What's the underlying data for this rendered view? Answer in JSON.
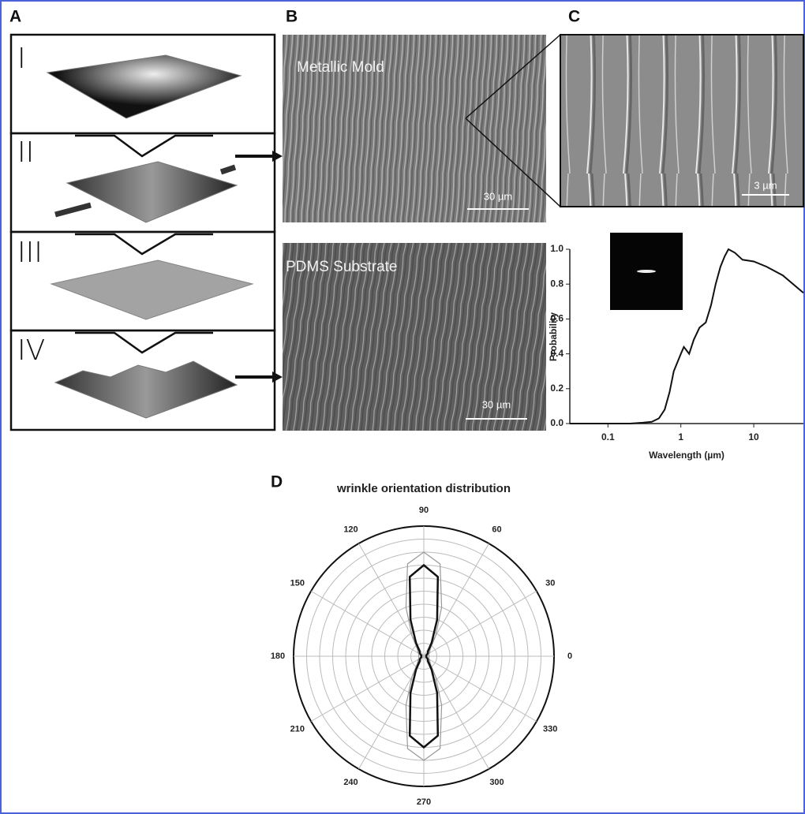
{
  "panel_labels": [
    "A",
    "B",
    "C",
    "D"
  ],
  "steps": [
    "I",
    "II",
    "III",
    "IV"
  ],
  "images": [
    {
      "caption": "Metallic Mold",
      "scale_bar": "30 µm"
    },
    {
      "caption": "PDMS Substrate",
      "scale_bar": "30 µm"
    },
    {
      "scale_bar": "3 µm"
    }
  ],
  "chart_data": [
    {
      "type": "line",
      "xlabel": "Wavelength (µm)",
      "ylabel": "Probability",
      "xscale": "log",
      "xlim": [
        0.03,
        48
      ],
      "ylim": [
        0,
        1.0
      ],
      "xticks": [
        0.1,
        1,
        10
      ],
      "yticks": [
        {
          "value": 0,
          "label": "0.0"
        },
        0.2,
        0.4,
        0.6,
        0.8,
        {
          "value": 1,
          "label": "1.0"
        }
      ],
      "color": "#111111",
      "x": [
        0.03,
        0.2,
        0.3,
        0.4,
        0.5,
        0.6,
        0.7,
        0.8,
        1.0,
        1.1,
        1.3,
        1.5,
        1.8,
        2.2,
        2.6,
        3,
        3.5,
        4,
        4.5,
        5.5,
        7,
        10,
        15,
        25,
        48
      ],
      "values": [
        0,
        0,
        0.005,
        0.01,
        0.03,
        0.08,
        0.18,
        0.3,
        0.4,
        0.44,
        0.4,
        0.48,
        0.55,
        0.58,
        0.68,
        0.8,
        0.9,
        0.96,
        1.0,
        0.98,
        0.94,
        0.93,
        0.9,
        0.85,
        0.75
      ]
    },
    {
      "type": "polar",
      "title": "wrinkle orientation distribution",
      "angles": [
        0,
        30,
        60,
        90,
        120,
        150,
        180,
        210,
        240,
        270,
        300,
        330
      ],
      "rlim": [
        0,
        1
      ],
      "rgrid": [
        0.1,
        0.2,
        0.3,
        0.4,
        0.5,
        0.6,
        0.7,
        0.8,
        0.9,
        1.0
      ],
      "theta": [
        0,
        10,
        20,
        30,
        40,
        50,
        60,
        70,
        80,
        90,
        100,
        110,
        120,
        130,
        140,
        150,
        160,
        170,
        180,
        190,
        200,
        210,
        220,
        230,
        240,
        250,
        260,
        270,
        280,
        290,
        300,
        310,
        320,
        330,
        340,
        350
      ],
      "series": [
        {
          "color": "#999999",
          "values": [
            0.04,
            0.04,
            0.04,
            0.05,
            0.06,
            0.08,
            0.18,
            0.4,
            0.72,
            0.8,
            0.72,
            0.4,
            0.18,
            0.08,
            0.06,
            0.05,
            0.04,
            0.04,
            0.04,
            0.04,
            0.04,
            0.05,
            0.06,
            0.08,
            0.18,
            0.4,
            0.72,
            0.8,
            0.72,
            0.4,
            0.18,
            0.08,
            0.06,
            0.05,
            0.04,
            0.04
          ]
        },
        {
          "color": "#111111",
          "values": [
            0.02,
            0.02,
            0.02,
            0.03,
            0.04,
            0.05,
            0.12,
            0.3,
            0.62,
            0.7,
            0.62,
            0.3,
            0.12,
            0.05,
            0.04,
            0.03,
            0.02,
            0.02,
            0.02,
            0.02,
            0.02,
            0.03,
            0.04,
            0.05,
            0.12,
            0.3,
            0.62,
            0.7,
            0.62,
            0.3,
            0.12,
            0.05,
            0.04,
            0.03,
            0.02,
            0.02
          ]
        }
      ]
    }
  ]
}
